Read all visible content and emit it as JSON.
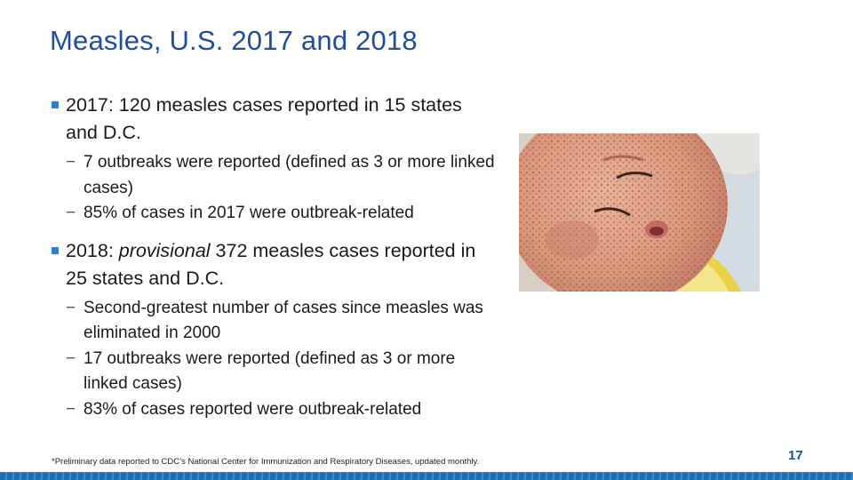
{
  "slide": {
    "title": "Measles, U.S. 2017 and 2018",
    "bullets": [
      {
        "text_before": "2017: 120 measles cases reported in 15 states and D.C.",
        "text_italic": "",
        "text_after": "",
        "subs": [
          "7 outbreaks were reported (defined as 3 or more linked cases)",
          "85% of cases in 2017  were outbreak-related"
        ]
      },
      {
        "text_before": "2018: ",
        "text_italic": "provisional",
        "text_after": " 372 measles cases reported in  25 states and D.C.",
        "subs": [
          "Second-greatest  number of cases  since measles was eliminated in  2000",
          "17 outbreaks  were reported  (defined as 3 or more linked cases)",
          "83% of cases reported were outbreak-related"
        ]
      }
    ],
    "sub_bullet_glyph": "−",
    "footnote": "*Preliminary data reported to CDC’s National Center for Immunization and Respiratory Diseases, updated monthly.",
    "page_number": "17",
    "colors": {
      "title": "#1f4e9c",
      "bullet": "#2f7fc8",
      "bar": "#1d6fb8"
    }
  }
}
